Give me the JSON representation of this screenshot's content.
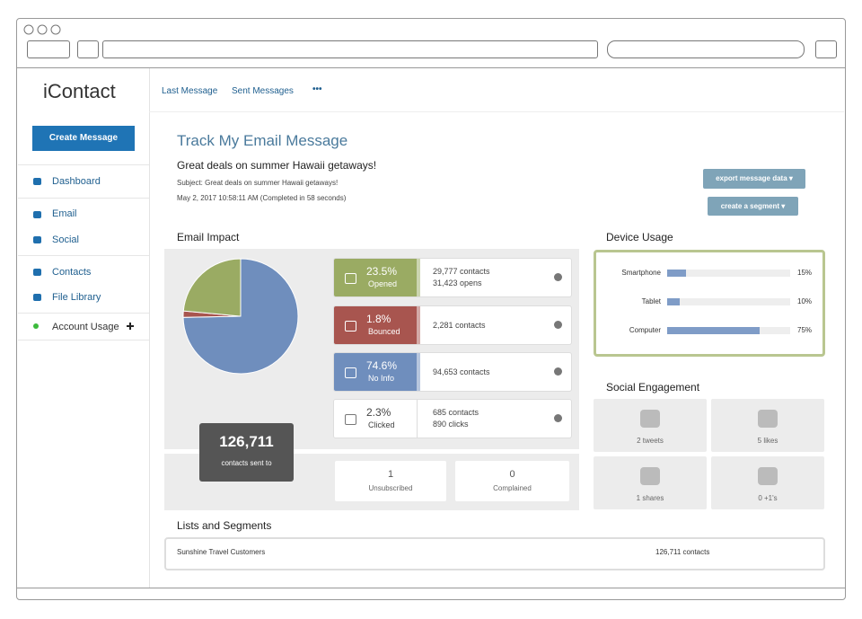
{
  "logo": "iContact",
  "nav": [
    "Last Message",
    "Sent Messages",
    "•••"
  ],
  "sidebar": {
    "create_button": "Create Message",
    "items": [
      "Dashboard",
      "Email",
      "Social",
      "Contacts",
      "File Library",
      "Account Usage"
    ]
  },
  "header": {
    "title": "Track My Email Message",
    "message_title": "Great deals on summer Hawaii getaways!",
    "subject": "Subject: Great deals on summer Hawaii getaways!",
    "date": "May 2, 2017 10:58:11 AM (Completed in 58 seconds)",
    "buttons": [
      "export message data ▾",
      "create a segment ▾"
    ]
  },
  "email_impact": {
    "title": "Email Impact",
    "total": "126,711",
    "total_label": "contacts sent to",
    "stats": [
      {
        "percent": 23.5,
        "percent_label": "23.5%",
        "label": "Opened",
        "details": [
          "29,777 contacts",
          "31,423 opens"
        ],
        "color": "#9aab63"
      },
      {
        "percent": 1.8,
        "percent_label": "1.8%",
        "label": "Bounced",
        "details": [
          "2,281 contacts"
        ],
        "color": "#a8554f"
      },
      {
        "percent": 74.6,
        "percent_label": "74.6%",
        "label": "No Info",
        "details": [
          "94,653 contacts"
        ],
        "color": "#6f8ebd"
      },
      {
        "percent": 2.3,
        "percent_label": "2.3%",
        "label": "Clicked",
        "details": [
          "685 contacts",
          "890 clicks"
        ]
      }
    ],
    "unsubscribed": {
      "value": "1",
      "label": "Unsubscribed"
    },
    "complained": {
      "value": "0",
      "label": "Complained"
    }
  },
  "device_usage": {
    "title": "Device Usage",
    "color": "#7f9cc7",
    "rows": [
      {
        "label": "Smartphone",
        "value": 15,
        "value_label": "15%"
      },
      {
        "label": "Tablet",
        "value": 10,
        "value_label": "10%"
      },
      {
        "label": "Computer",
        "value": 75,
        "value_label": "75%"
      }
    ]
  },
  "social_engagement": {
    "title": "Social Engagement",
    "items": [
      "2 tweets",
      "5 likes",
      "1 shares",
      "0 +1's"
    ]
  },
  "lists": {
    "title": "Lists and Segments",
    "rows": [
      [
        "Sunshine Travel Customers",
        "126,711 contacts"
      ]
    ]
  }
}
